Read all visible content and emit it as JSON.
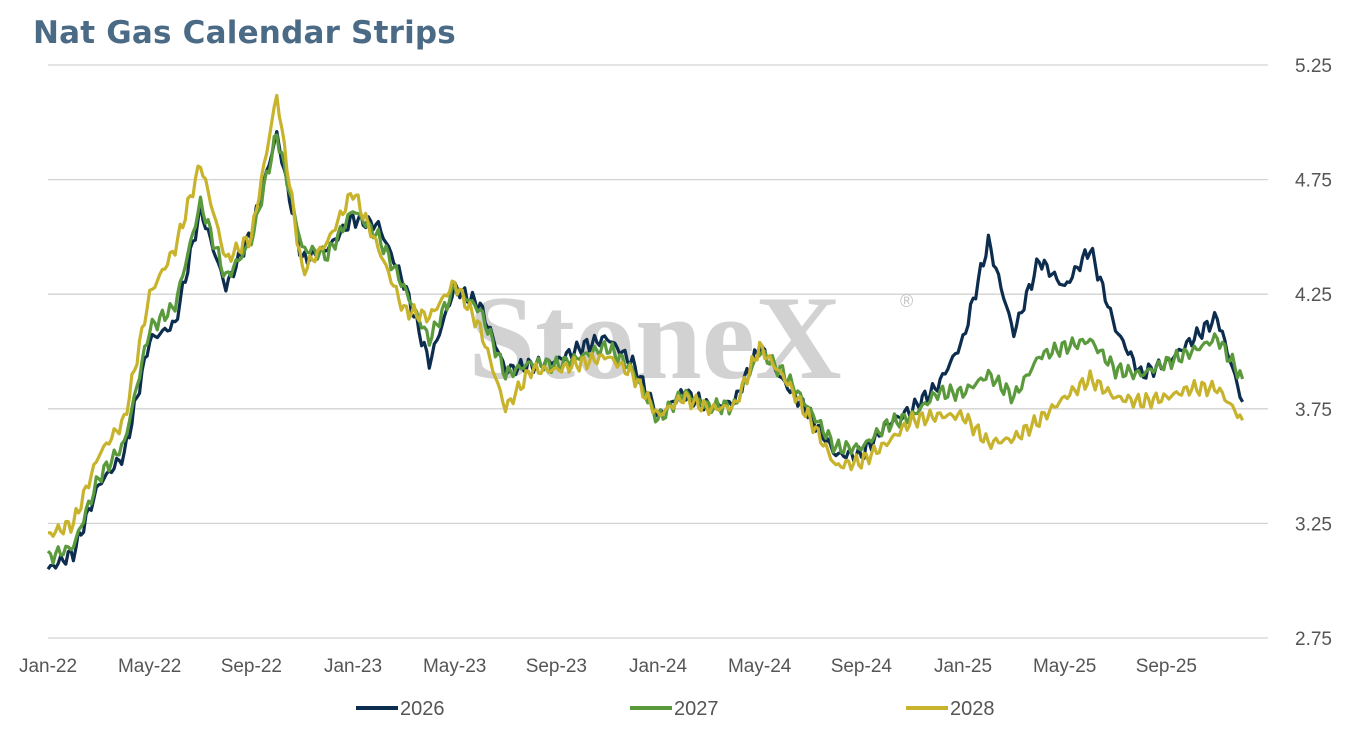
{
  "chart_data": {
    "type": "line",
    "title": "Nat Gas Calendar Strips",
    "watermark": "StoneX",
    "watermark_mark": "®",
    "ylim": [
      2.75,
      5.25
    ],
    "yticks": [
      "2.75",
      "3.25",
      "3.75",
      "4.25",
      "4.75",
      "5.25"
    ],
    "y_axis_position": "right",
    "x_tick_labels": [
      "Jan-22",
      "May-22",
      "Sep-22",
      "Jan-23",
      "May-23",
      "Sep-23",
      "Jan-24",
      "May-24",
      "Sep-24",
      "Jan-25",
      "May-25",
      "Sep-25"
    ],
    "grid": "horizontal",
    "legend_position": "bottom",
    "x": [
      "2022-01",
      "2022-02",
      "2022-03",
      "2022-04",
      "2022-05",
      "2022-06",
      "2022-07",
      "2022-08",
      "2022-09",
      "2022-10",
      "2022-11",
      "2022-12",
      "2023-01",
      "2023-02",
      "2023-03",
      "2023-04",
      "2023-05",
      "2023-06",
      "2023-07",
      "2023-08",
      "2023-09",
      "2023-10",
      "2023-11",
      "2023-12",
      "2024-01",
      "2024-02",
      "2024-03",
      "2024-04",
      "2024-05",
      "2024-06",
      "2024-07",
      "2024-08",
      "2024-09",
      "2024-10",
      "2024-11",
      "2024-12",
      "2025-01",
      "2025-02",
      "2025-03",
      "2025-04",
      "2025-05",
      "2025-06",
      "2025-07",
      "2025-08",
      "2025-09",
      "2025-10",
      "2025-11",
      "2025-12"
    ],
    "series": [
      {
        "name": "2026",
        "color": "#0d2d4f",
        "values": [
          3.05,
          3.12,
          3.42,
          3.55,
          4.05,
          4.12,
          4.62,
          4.28,
          4.52,
          4.95,
          4.4,
          4.45,
          4.58,
          4.55,
          4.3,
          3.95,
          4.28,
          4.2,
          3.92,
          3.94,
          3.96,
          4.02,
          4.06,
          3.95,
          3.72,
          3.82,
          3.76,
          3.78,
          4.02,
          3.86,
          3.72,
          3.55,
          3.55,
          3.68,
          3.75,
          3.85,
          4.05,
          4.48,
          4.08,
          4.4,
          4.28,
          4.45,
          4.1,
          3.9,
          3.95,
          4.05,
          4.15,
          3.78
        ]
      },
      {
        "name": "2027",
        "color": "#5a9a3c",
        "values": [
          3.1,
          3.15,
          3.45,
          3.6,
          4.1,
          4.2,
          4.65,
          4.32,
          4.48,
          4.95,
          4.45,
          4.42,
          4.62,
          4.5,
          4.28,
          4.05,
          4.28,
          4.18,
          3.9,
          3.95,
          3.94,
          3.98,
          4.02,
          3.92,
          3.7,
          3.82,
          3.76,
          3.76,
          4.0,
          3.9,
          3.74,
          3.58,
          3.58,
          3.68,
          3.72,
          3.82,
          3.82,
          3.9,
          3.8,
          3.98,
          4.02,
          4.05,
          3.92,
          3.9,
          3.95,
          4.0,
          4.06,
          3.88
        ]
      },
      {
        "name": "2028",
        "color": "#c8b32c",
        "values": [
          3.2,
          3.25,
          3.55,
          3.7,
          4.25,
          4.45,
          4.82,
          4.4,
          4.5,
          5.12,
          4.35,
          4.48,
          4.7,
          4.45,
          4.18,
          4.15,
          4.3,
          4.1,
          3.75,
          3.92,
          3.92,
          3.95,
          3.98,
          3.9,
          3.72,
          3.8,
          3.75,
          3.76,
          4.02,
          3.88,
          3.7,
          3.5,
          3.52,
          3.6,
          3.7,
          3.72,
          3.72,
          3.6,
          3.62,
          3.7,
          3.8,
          3.88,
          3.8,
          3.78,
          3.8,
          3.84,
          3.84,
          3.7
        ]
      }
    ]
  }
}
